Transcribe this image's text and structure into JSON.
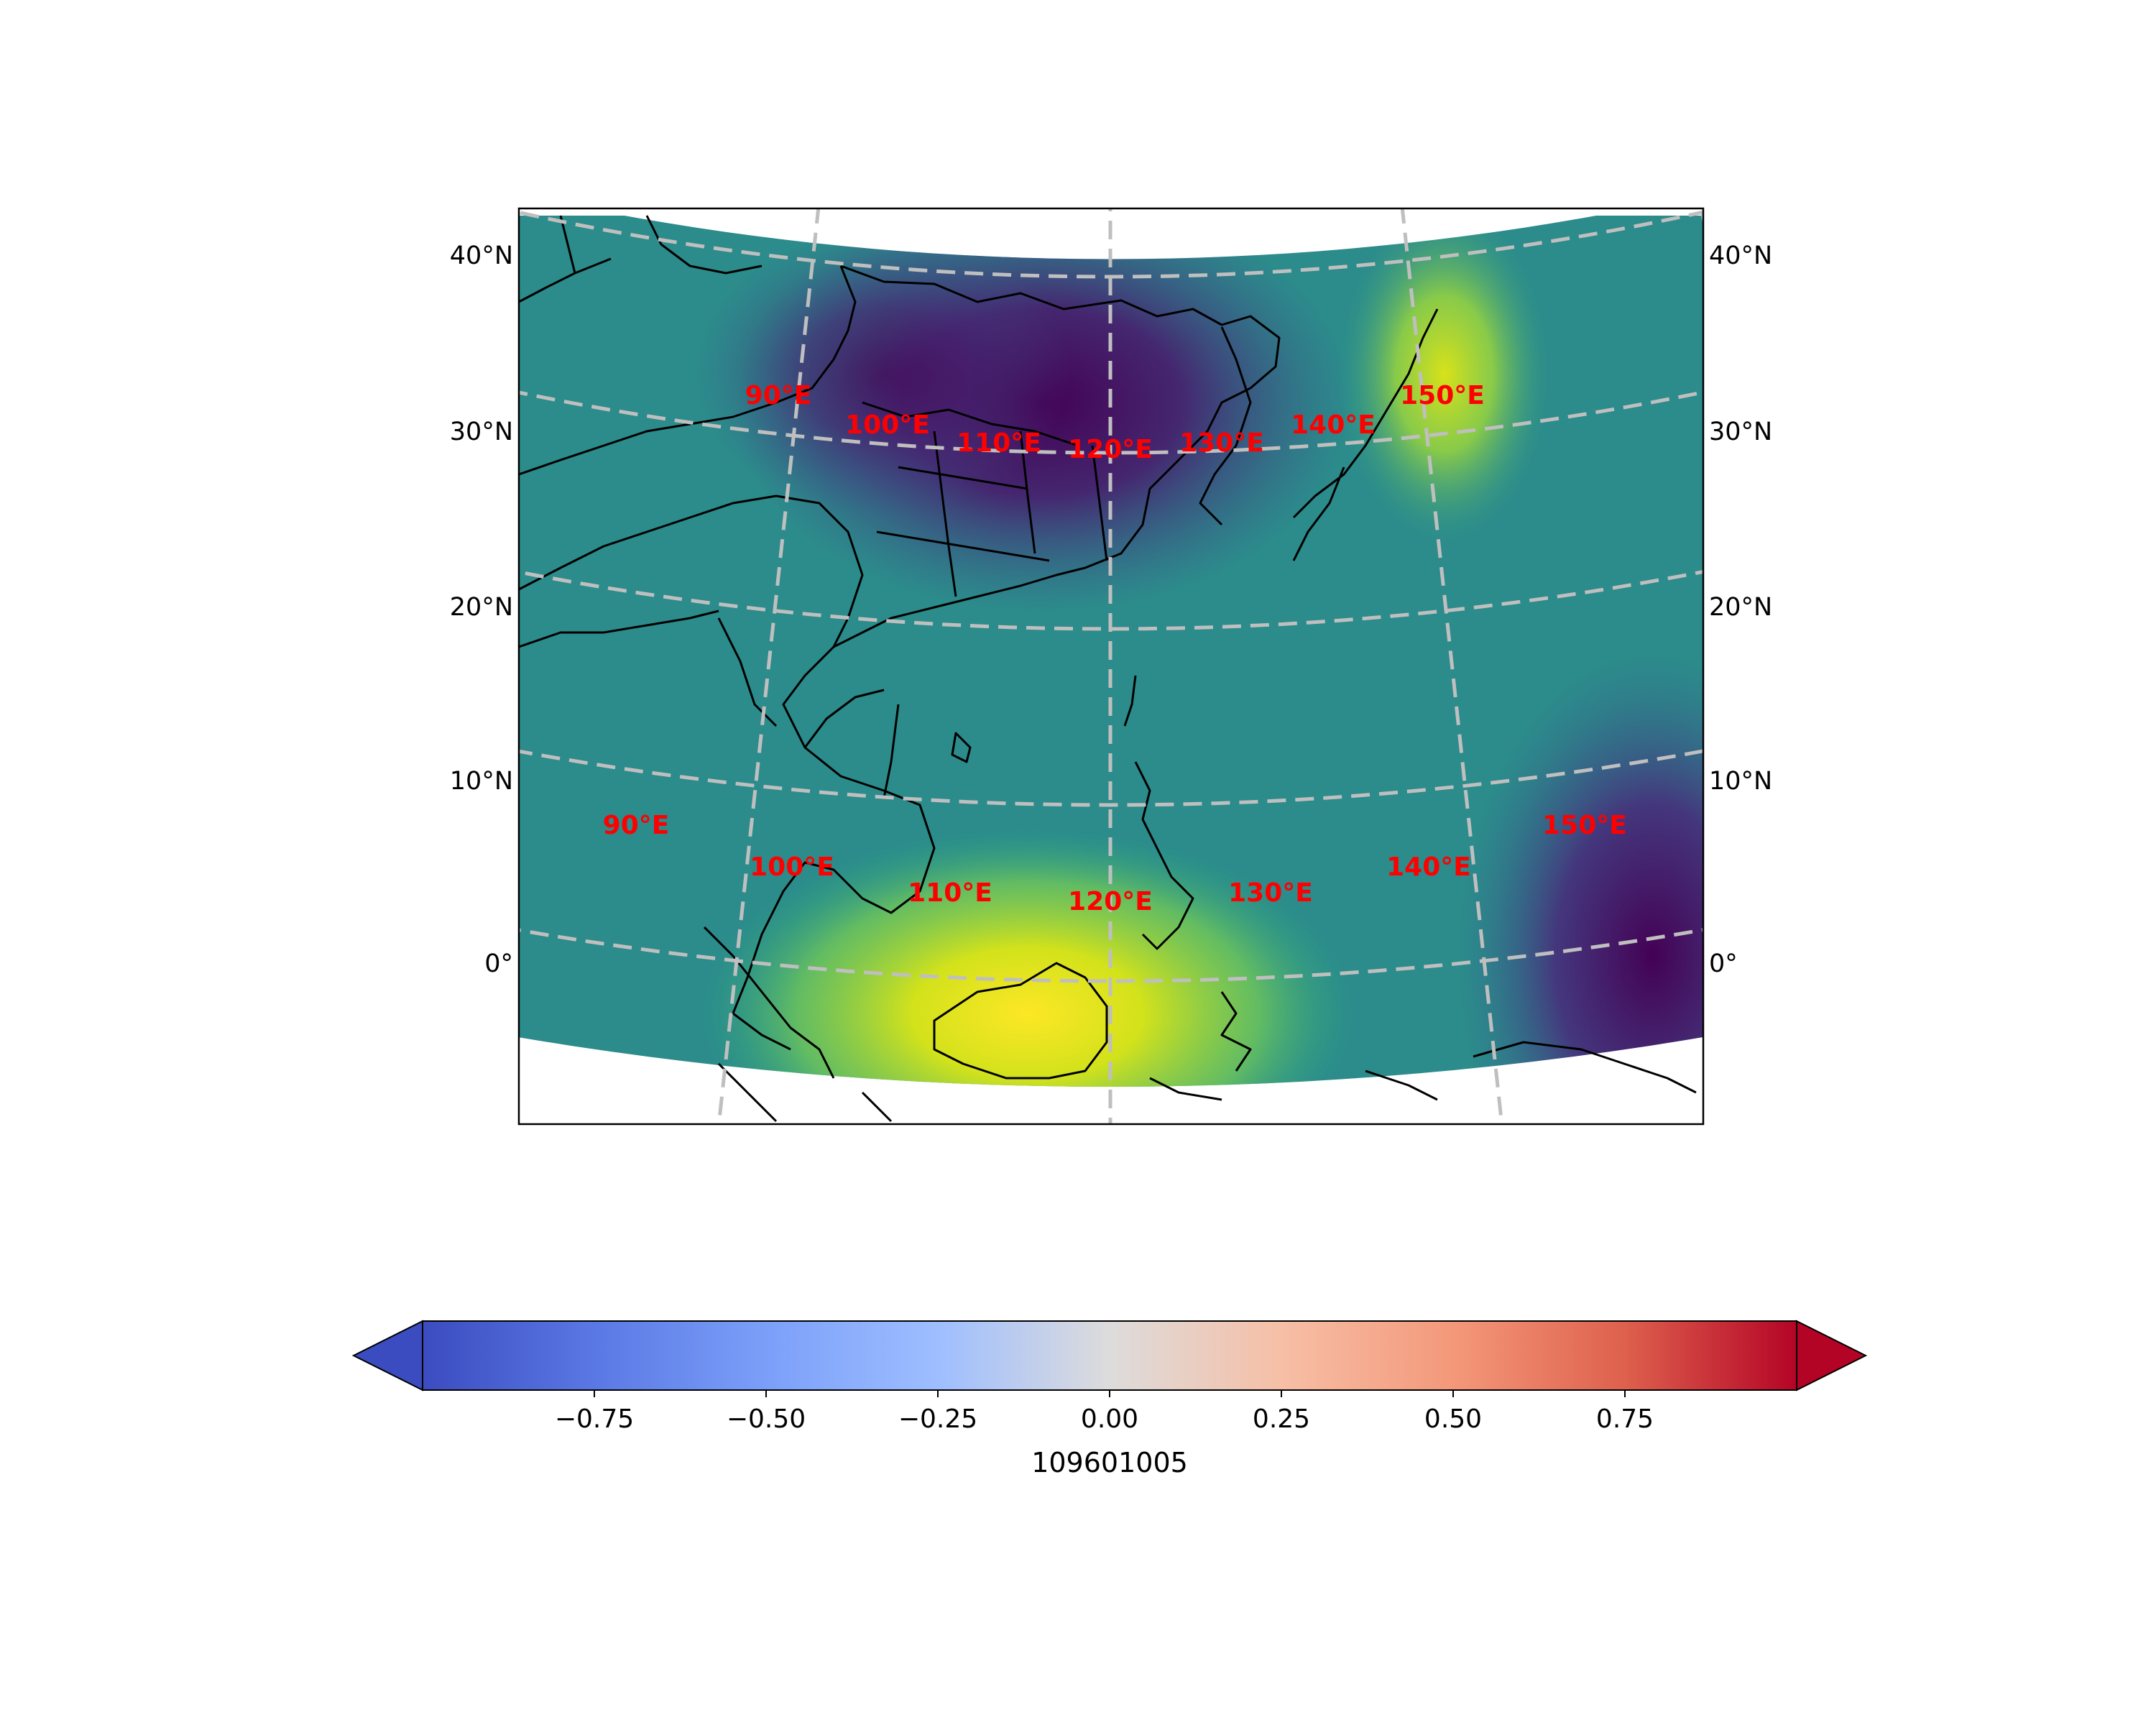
{
  "map": {
    "projection": "lambert-conformal",
    "lat_labels": [
      "40°N",
      "30°N",
      "20°N",
      "10°N",
      "0°"
    ],
    "lon_labels_top": [
      "90°E",
      "100°E",
      "110°E",
      "120°E",
      "130°E",
      "140°E",
      "150°E"
    ],
    "lon_labels_bottom": [
      "90°E",
      "100°E",
      "110°E",
      "120°E",
      "130°E",
      "140°E",
      "150°E"
    ],
    "lon_label_color": "#ff0000",
    "gridline_color": "#bfbfbf",
    "field_colormap": "viridis",
    "field_pattern": "low values over northern China / Korea and the far eastern Pacific; high values over Borneo / South China Sea and near Japan"
  },
  "colorbar": {
    "label": "109601005",
    "colormap": "coolwarm",
    "extend": "both",
    "range": [
      -1,
      1
    ],
    "ticks": [
      -0.75,
      -0.5,
      -0.25,
      0.0,
      0.25,
      0.5,
      0.75
    ],
    "tick_labels": [
      "−0.75",
      "−0.50",
      "−0.25",
      "0.00",
      "0.25",
      "0.50",
      "0.75"
    ]
  }
}
